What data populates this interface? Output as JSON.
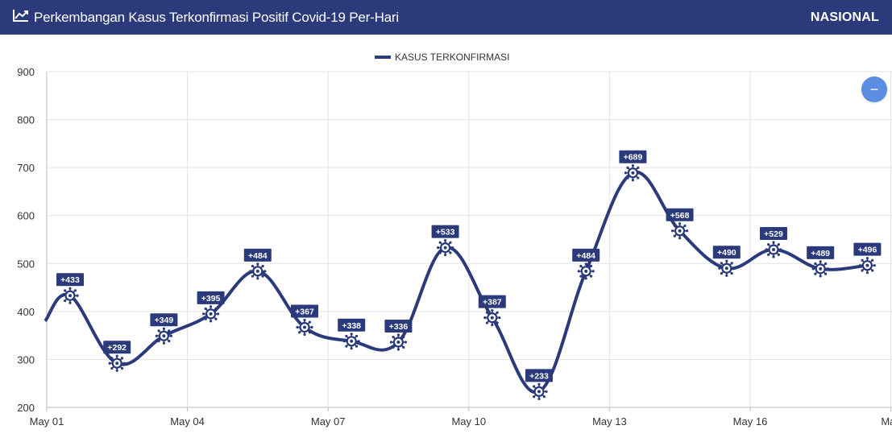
{
  "header": {
    "title": "Perkembangan Kasus Terkonfirmasi Positif Covid-19 Per-Hari",
    "scope": "NASIONAL",
    "icon": "line-chart-icon"
  },
  "controls": {
    "collapse_icon": "minus-icon",
    "collapse_label": "−"
  },
  "colors": {
    "header_bg": "#2b3a7a",
    "series": "#2b3a7a",
    "button": "#5b8de0"
  },
  "chart_data": {
    "type": "line",
    "title": "",
    "legend": [
      "KASUS TERKONFIRMASI"
    ],
    "legend_position": "top-center",
    "grid": true,
    "ylim": [
      200,
      900
    ],
    "yticks": [
      "900",
      "800",
      "700",
      "600",
      "500",
      "400",
      "300",
      "200"
    ],
    "xticks": [
      "May 01",
      "May 04",
      "May 07",
      "May 10",
      "May 13",
      "May 16",
      "May"
    ],
    "x": [
      "May 01",
      "May 02",
      "May 03",
      "May 04",
      "May 05",
      "May 06",
      "May 07",
      "May 08",
      "May 09",
      "May 10",
      "May 11",
      "May 12",
      "May 13",
      "May 14",
      "May 15",
      "May 16",
      "May 17",
      "May 18"
    ],
    "series": [
      {
        "name": "KASUS TERKONFIRMASI",
        "start_value": 380,
        "values": [
          433,
          292,
          349,
          395,
          484,
          367,
          338,
          336,
          533,
          387,
          233,
          484,
          689,
          568,
          490,
          529,
          489,
          496
        ],
        "labels": [
          "+433",
          "+292",
          "+349",
          "+395",
          "+484",
          "+367",
          "+338",
          "+336",
          "+533",
          "+387",
          "+233",
          "+484",
          "+689",
          "+568",
          "+490",
          "+529",
          "+489",
          "+496"
        ]
      }
    ]
  }
}
